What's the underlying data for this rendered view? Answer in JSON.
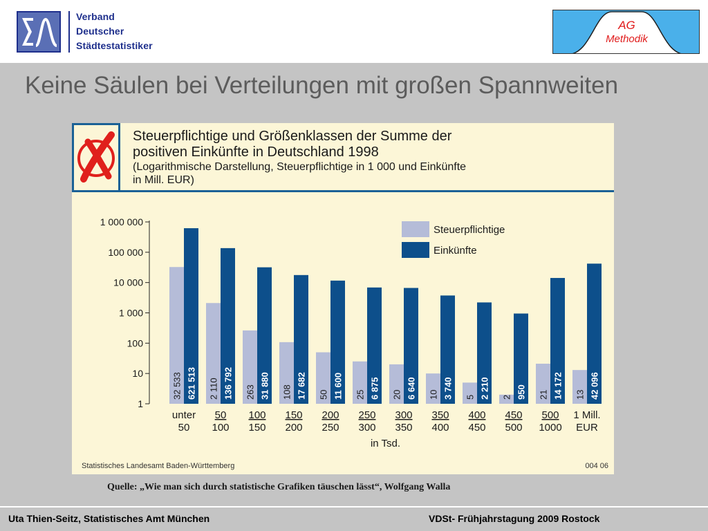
{
  "header": {
    "org_line1": "Verband",
    "org_line2": "Deutscher",
    "org_line3": "Städtestatistiker",
    "ag_line1": "AG",
    "ag_line2": "Methodik"
  },
  "slide_title": "Keine Säulen bei Verteilungen mit großen Spannweiten",
  "chart_data": {
    "type": "bar",
    "title_lines": [
      "Steuerpflichtige und Größenklassen der Summe der",
      "positiven Einkünfte in Deutschland 1998",
      "(Logarithmische Darstellung, Steuerpflichtige in 1 000 und Einkünfte",
      "in Mill. EUR)"
    ],
    "y_scale": "log",
    "ylim": [
      1,
      1000000
    ],
    "y_ticks": [
      1,
      10,
      100,
      1000,
      10000,
      100000,
      1000000
    ],
    "y_tick_labels": [
      "1",
      "10",
      "100",
      "1 000",
      "10 000",
      "100 000",
      "1 000 000"
    ],
    "categories": [
      [
        "unter",
        "50"
      ],
      [
        "50",
        "100"
      ],
      [
        "100",
        "150"
      ],
      [
        "150",
        "200"
      ],
      [
        "200",
        "250"
      ],
      [
        "250",
        "300"
      ],
      [
        "300",
        "350"
      ],
      [
        "350",
        "400"
      ],
      [
        "400",
        "450"
      ],
      [
        "450",
        "500"
      ],
      [
        "500",
        "1000"
      ],
      [
        "1 Mill.",
        "EUR"
      ]
    ],
    "xlabel": "in Tsd.",
    "legend_position": "top-right",
    "series": [
      {
        "name": "Steuerpflichtige",
        "color": "#b5bcd8",
        "values": [
          32533,
          2110,
          263,
          108,
          50,
          25,
          20,
          10,
          5,
          2,
          21,
          13
        ],
        "labels": [
          "32 533",
          "2 110",
          "263",
          "108",
          "50",
          "25",
          "20",
          "10",
          "5",
          "2",
          "21",
          "13"
        ]
      },
      {
        "name": "Einkünfte",
        "color": "#0d4f8b",
        "values": [
          621513,
          136792,
          31880,
          17682,
          11600,
          6875,
          6640,
          3740,
          2210,
          950,
          14172,
          42096
        ],
        "labels": [
          "621 513",
          "136 792",
          "31 880",
          "17 682",
          "11 600",
          "6 875",
          "6 640",
          "3 740",
          "2 210",
          "950",
          "14 172",
          "42 096"
        ]
      }
    ],
    "source_left": "Statistisches Landesamt Baden-Württemberg",
    "source_right": "004 06"
  },
  "quote": "Quelle: „Wie man sich durch statistische Grafiken täuschen lässt“, Wolfgang Walla",
  "footer": {
    "left": "Uta Thien-Seitz, Statistisches Amt München",
    "right": "VDSt- Frühjahrstagung 2009 Rostock"
  },
  "colors": {
    "x_mark": "#e0201c",
    "frame": "#1b6196",
    "logo_blue": "#1e2f8c",
    "ag_red": "#e01b1b"
  }
}
